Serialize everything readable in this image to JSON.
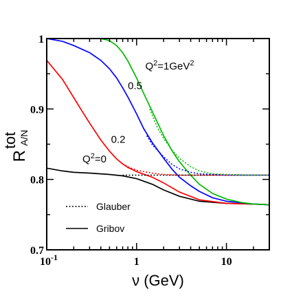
{
  "chart_data": {
    "type": "line",
    "xscale": "log",
    "xlim": [
      0.1,
      30
    ],
    "ylim": [
      0.7,
      1.0
    ],
    "xlabel": "ν (GeV)",
    "ylabel": "R",
    "ylabel_sup": "tot",
    "ylabel_sub": "A/N",
    "x_ticks": [
      {
        "value": 0.1,
        "base": "10",
        "exp": "-1"
      },
      {
        "value": 1,
        "base": "1",
        "exp": ""
      },
      {
        "value": 10,
        "base": "10",
        "exp": ""
      }
    ],
    "y_ticks": [
      {
        "value": 0.7,
        "label": "0.7"
      },
      {
        "value": 0.8,
        "label": "0.8"
      },
      {
        "value": 0.9,
        "label": "0.9"
      },
      {
        "value": 1.0,
        "label": "1"
      }
    ],
    "grid": false,
    "legend_position": "bottom-left",
    "legend": [
      {
        "label": "Glauber",
        "style": "dotted"
      },
      {
        "label": "Gribov",
        "style": "solid"
      }
    ],
    "annotations": [
      {
        "text": "Q",
        "sup": "2",
        "rest": "=1GeV",
        "sup2": "2",
        "x": 1.25,
        "y": 0.956
      },
      {
        "text": "0.5",
        "x": 0.8,
        "y": 0.928
      },
      {
        "text": "0.2",
        "x": 0.52,
        "y": 0.852
      },
      {
        "text": "Q",
        "sup": "2",
        "rest": "=0",
        "x": 0.25,
        "y": 0.824
      }
    ],
    "series": [
      {
        "q2": "0",
        "style": "solid",
        "color": "#000000",
        "x": [
          0.1,
          0.15,
          0.2,
          0.3,
          0.5,
          0.7,
          1,
          1.5,
          2,
          3,
          5,
          10,
          20,
          30
        ],
        "y": [
          0.816,
          0.812,
          0.81,
          0.809,
          0.807,
          0.805,
          0.801,
          0.793,
          0.785,
          0.776,
          0.769,
          0.766,
          0.765,
          0.764
        ]
      },
      {
        "q2": "0.2",
        "style": "solid",
        "color": "#ff0000",
        "x": [
          0.1,
          0.15,
          0.2,
          0.25,
          0.3,
          0.4,
          0.5,
          0.6,
          0.7,
          0.8,
          1,
          1.5,
          2,
          3,
          5,
          10,
          20,
          30
        ],
        "y": [
          0.969,
          0.942,
          0.916,
          0.896,
          0.88,
          0.856,
          0.84,
          0.829,
          0.822,
          0.817,
          0.811,
          0.803,
          0.795,
          0.782,
          0.771,
          0.766,
          0.765,
          0.764
        ]
      },
      {
        "q2": "0.5",
        "style": "solid",
        "color": "#0000ff",
        "x": [
          0.1,
          0.15,
          0.2,
          0.3,
          0.4,
          0.5,
          0.6,
          0.7,
          0.8,
          1,
          1.2,
          1.5,
          2,
          2.5,
          3,
          4,
          5,
          7,
          10,
          20,
          30
        ],
        "y": [
          1.0,
          0.996,
          0.99,
          0.98,
          0.969,
          0.957,
          0.944,
          0.93,
          0.917,
          0.893,
          0.872,
          0.852,
          0.83,
          0.814,
          0.803,
          0.791,
          0.783,
          0.774,
          0.769,
          0.765,
          0.764
        ]
      },
      {
        "q2": "1",
        "style": "solid",
        "color": "#00bb00",
        "x": [
          0.4,
          0.5,
          0.6,
          0.7,
          0.8,
          1,
          1.2,
          1.5,
          2,
          2.5,
          3,
          4,
          5,
          7,
          10,
          15,
          20,
          30
        ],
        "y": [
          1.0,
          0.997,
          0.99,
          0.98,
          0.968,
          0.944,
          0.922,
          0.896,
          0.862,
          0.84,
          0.825,
          0.806,
          0.793,
          0.78,
          0.772,
          0.767,
          0.765,
          0.764
        ]
      },
      {
        "q2": "0",
        "style": "dotted",
        "color": "#000000",
        "x": [
          0.7,
          1,
          1.5,
          2,
          3,
          5,
          10,
          20,
          30
        ],
        "y": [
          0.806,
          0.806,
          0.806,
          0.806,
          0.806,
          0.806,
          0.806,
          0.806,
          0.806
        ]
      },
      {
        "q2": "0.2",
        "style": "dotted",
        "color": "#ff0000",
        "x": [
          0.7,
          0.8,
          1,
          1.5,
          2,
          3,
          5,
          10,
          20,
          30
        ],
        "y": [
          0.822,
          0.818,
          0.813,
          0.809,
          0.807,
          0.806,
          0.806,
          0.806,
          0.806,
          0.806
        ]
      },
      {
        "q2": "0.5",
        "style": "dotted",
        "color": "#0000ff",
        "x": [
          1.3,
          1.5,
          2,
          2.5,
          3,
          4,
          5,
          10,
          20,
          30
        ],
        "y": [
          0.862,
          0.849,
          0.832,
          0.821,
          0.815,
          0.81,
          0.808,
          0.806,
          0.806,
          0.806
        ]
      },
      {
        "q2": "1",
        "style": "dotted",
        "color": "#00bb00",
        "x": [
          1.4,
          1.7,
          2,
          2.5,
          3,
          4,
          5,
          7,
          10,
          20,
          30
        ],
        "y": [
          0.9,
          0.874,
          0.858,
          0.841,
          0.83,
          0.818,
          0.812,
          0.808,
          0.807,
          0.806,
          0.806
        ]
      }
    ]
  }
}
